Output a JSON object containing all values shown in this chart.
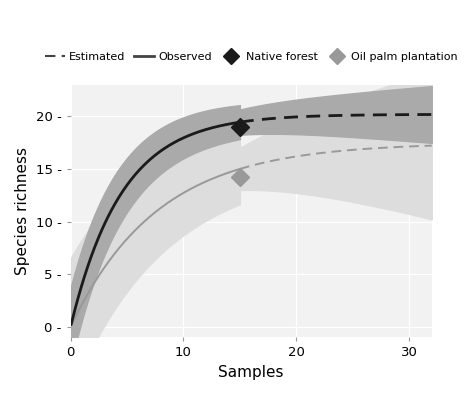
{
  "xlabel": "Samples",
  "ylabel": "Species richness",
  "xlim": [
    0,
    32
  ],
  "ylim": [
    -1,
    23
  ],
  "yticks": [
    0,
    5,
    10,
    15,
    20
  ],
  "xticks": [
    0,
    10,
    20,
    30
  ],
  "bg_color": "#ffffff",
  "plot_bg_color": "#f2f2f2",
  "grid_color": "#ffffff",
  "native_color": "#1a1a1a",
  "oil_color": "#999999",
  "native_ci_color": "#aaaaaa",
  "oil_ci_color": "#dddddd",
  "S_native": 20.2,
  "k_native": 0.22,
  "S_oil": 17.5,
  "k_oil": 0.13,
  "native_obs_end": 15,
  "oil_obs_end": 15,
  "x_max": 32,
  "native_diamond_x": 15,
  "native_diamond_y": 19.0,
  "oil_diamond_x": 15,
  "oil_diamond_y": 14.2
}
